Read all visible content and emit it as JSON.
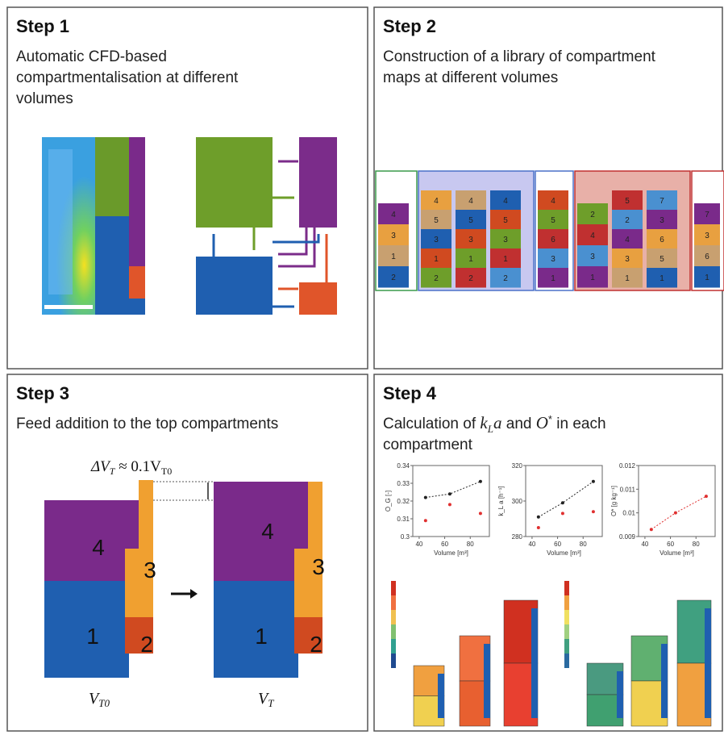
{
  "panels": [
    {
      "title": "Step 1",
      "description": [
        "Automatic CFD-based",
        "compartmentalisation at different",
        "volumes"
      ]
    },
    {
      "title": "Step 2",
      "description": [
        "Construction of a library of compartment",
        "maps at different volumes"
      ],
      "maps": [
        [
          "4",
          "3",
          "1",
          "2"
        ],
        [
          "4",
          "5",
          "3",
          "1",
          "2"
        ],
        [
          "4",
          "5",
          "3",
          "1",
          "2"
        ],
        [
          "4",
          "5",
          "3",
          "1",
          "2"
        ],
        [
          "4",
          "5",
          "6",
          "3",
          "1"
        ],
        [
          "2",
          "4",
          "3",
          "1"
        ],
        [
          "5",
          "2",
          "4",
          "3",
          "1"
        ],
        [
          "7",
          "3",
          "6",
          "5",
          "1"
        ],
        [
          "7",
          "3",
          "6",
          "1"
        ]
      ]
    },
    {
      "title": "Step 3",
      "description": [
        "Feed addition to the top compartments"
      ],
      "delta": "ΔV",
      "delta_sub": "T",
      "delta_mid": " ≈ 0.1V",
      "delta_sub2": "T0",
      "labels": [
        "4",
        "3",
        "1",
        "2"
      ],
      "left_v": "V",
      "left_sub": "T0",
      "right_v": "V",
      "right_sub": "T"
    },
    {
      "title": "Step 4",
      "description_parts": [
        "Calculation of ",
        "k",
        "L",
        "a",
        " and ",
        "O",
        "*",
        " in each"
      ],
      "description2": "compartment",
      "plots": [
        {
          "ylabel": "O_G [-]",
          "xlabel": "Volume [m³]",
          "x": [
            45,
            64,
            88
          ],
          "xlim": [
            35,
            95
          ],
          "xticks": [
            40,
            60,
            80
          ],
          "ylim": [
            0.3,
            0.34
          ],
          "yticks": [
            0.3,
            0.31,
            0.32,
            0.33,
            0.34
          ],
          "series": [
            {
              "color": "#222222",
              "values": [
                0.322,
                0.324,
                0.331
              ]
            },
            {
              "color": "#e03030",
              "values": [
                0.309,
                0.318,
                0.313
              ]
            }
          ]
        },
        {
          "ylabel": "k_L a [h⁻¹]",
          "xlabel": "Volume [m³]",
          "x": [
            45,
            64,
            88
          ],
          "xlim": [
            35,
            95
          ],
          "xticks": [
            40,
            60,
            80
          ],
          "ylim": [
            280,
            320
          ],
          "yticks": [
            280,
            300,
            320
          ],
          "series": [
            {
              "color": "#222222",
              "values": [
                291,
                299,
                311
              ]
            },
            {
              "color": "#e03030",
              "values": [
                285,
                293,
                294
              ]
            }
          ]
        },
        {
          "ylabel": "O* [g kg⁻¹]",
          "xlabel": "Volume [m³]",
          "x": [
            45,
            64,
            88
          ],
          "xlim": [
            35,
            95
          ],
          "xticks": [
            40,
            60,
            80
          ],
          "ylim": [
            0.009,
            0.012
          ],
          "yticks": [
            0.009,
            0.01,
            0.011,
            0.012
          ],
          "series": [
            {
              "color": "#e03030",
              "values": [
                0.0093,
                0.01,
                0.0107
              ]
            }
          ]
        }
      ]
    }
  ]
}
